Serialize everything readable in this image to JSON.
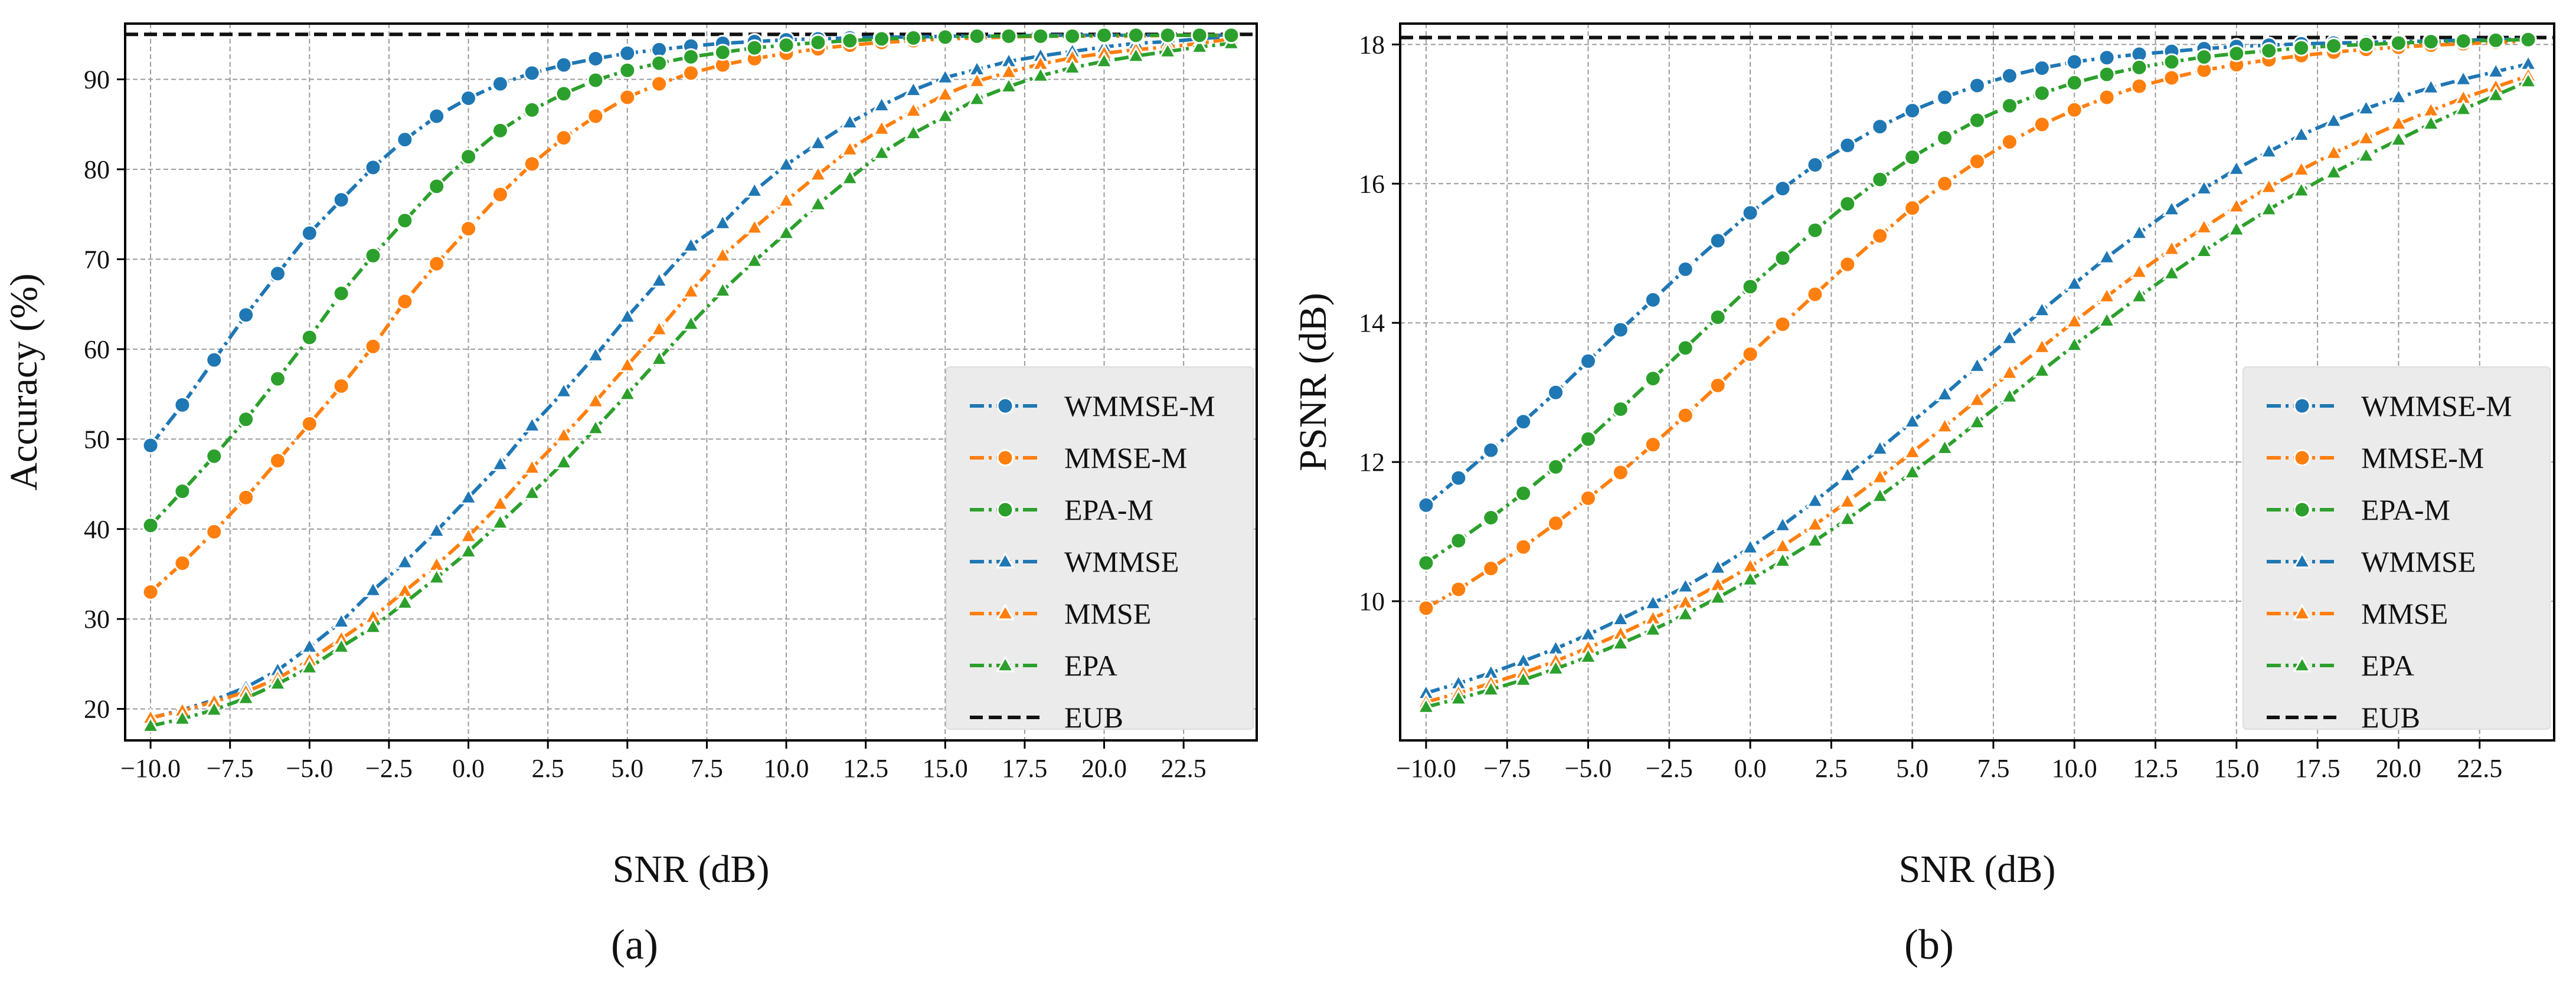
{
  "colors": {
    "blue": "#1f77b4",
    "orange": "#ff7f0e",
    "green": "#2ca02c",
    "black": "#111111",
    "grid": "#9a9a9a",
    "legend_bg": "#ebebeb"
  },
  "chart_data": [
    {
      "id": "a",
      "type": "line",
      "caption": "(a)",
      "xlabel": "SNR (dB)",
      "ylabel": "Accuracy (%)",
      "xlim": [
        -10.8,
        24.8
      ],
      "ylim": [
        16.5,
        96.2
      ],
      "xticks": [
        -10.0,
        -7.5,
        -5.0,
        -2.5,
        0.0,
        2.5,
        5.0,
        7.5,
        10.0,
        12.5,
        15.0,
        17.5,
        20.0,
        22.5
      ],
      "xtick_labels": [
        "−10.0",
        "−7.5",
        "−5.0",
        "−2.5",
        "0.0",
        "2.5",
        "5.0",
        "7.5",
        "10.0",
        "12.5",
        "15.0",
        "17.5",
        "20.0",
        "22.5"
      ],
      "yticks": [
        20,
        30,
        40,
        50,
        60,
        70,
        80,
        90
      ],
      "ytick_labels": [
        "20",
        "30",
        "40",
        "50",
        "60",
        "70",
        "80",
        "90"
      ],
      "grid": true,
      "legend_position": "lower-right",
      "x": [
        -10,
        -9,
        -8,
        -7,
        -6,
        -5,
        -4,
        -3,
        -2,
        -1,
        0,
        1,
        2,
        3,
        4,
        5,
        6,
        7,
        8,
        9,
        10,
        11,
        12,
        13,
        14,
        15,
        16,
        17,
        18,
        19,
        20,
        21,
        22,
        23,
        24
      ],
      "reference_line": {
        "name": "EUB",
        "value": 95.0
      },
      "series": [
        {
          "name": "WMMSE-M",
          "color": "blue",
          "marker": "circle",
          "values": [
            49.3,
            53.8,
            58.8,
            63.8,
            68.4,
            72.9,
            76.6,
            80.2,
            83.3,
            85.9,
            87.9,
            89.5,
            90.7,
            91.6,
            92.3,
            92.9,
            93.3,
            93.7,
            94.0,
            94.2,
            94.4,
            94.5,
            94.6,
            94.7,
            94.7,
            94.8,
            94.8,
            94.8,
            94.9,
            94.9,
            94.9,
            94.9,
            94.9,
            94.9,
            94.9
          ]
        },
        {
          "name": "MMSE-M",
          "color": "orange",
          "marker": "circle",
          "values": [
            33.0,
            36.2,
            39.7,
            43.5,
            47.6,
            51.7,
            55.9,
            60.3,
            65.3,
            69.5,
            73.4,
            77.2,
            80.6,
            83.5,
            85.9,
            88.0,
            89.5,
            90.7,
            91.6,
            92.3,
            92.9,
            93.4,
            93.8,
            94.1,
            94.3,
            94.5,
            94.6,
            94.7,
            94.8,
            94.8,
            94.8,
            94.8,
            94.9,
            94.9,
            94.9
          ]
        },
        {
          "name": "EPA-M",
          "color": "green",
          "marker": "circle",
          "values": [
            40.4,
            44.2,
            48.1,
            52.2,
            56.7,
            61.3,
            66.2,
            70.4,
            74.3,
            78.1,
            81.4,
            84.3,
            86.6,
            88.4,
            89.9,
            91.0,
            91.8,
            92.5,
            93.0,
            93.5,
            93.8,
            94.1,
            94.3,
            94.5,
            94.6,
            94.7,
            94.8,
            94.8,
            94.8,
            94.8,
            94.9,
            94.9,
            94.9,
            94.9,
            94.9
          ]
        },
        {
          "name": "WMMSE",
          "color": "blue",
          "marker": "triangle",
          "values": [
            19.0,
            19.9,
            21.0,
            22.4,
            24.3,
            26.9,
            29.7,
            33.2,
            36.3,
            39.8,
            43.5,
            47.2,
            51.5,
            55.3,
            59.3,
            63.6,
            67.6,
            71.5,
            74.0,
            77.6,
            80.5,
            82.9,
            85.2,
            87.1,
            88.8,
            90.2,
            91.1,
            92.0,
            92.6,
            93.1,
            93.6,
            94.0,
            94.2,
            94.5,
            94.8
          ]
        },
        {
          "name": "MMSE",
          "color": "orange",
          "marker": "triangle",
          "values": [
            19.0,
            19.8,
            20.8,
            21.9,
            23.4,
            25.4,
            27.8,
            30.2,
            33.1,
            36.0,
            39.2,
            42.8,
            46.8,
            50.4,
            54.2,
            58.2,
            62.2,
            66.4,
            70.4,
            73.5,
            76.5,
            79.4,
            82.2,
            84.5,
            86.5,
            88.3,
            89.8,
            90.8,
            91.7,
            92.4,
            92.9,
            93.3,
            93.6,
            94.0,
            94.5
          ]
        },
        {
          "name": "EPA",
          "color": "green",
          "marker": "triangle",
          "values": [
            18.1,
            18.9,
            19.9,
            21.2,
            22.8,
            24.6,
            26.9,
            29.1,
            31.8,
            34.6,
            37.5,
            40.7,
            44.0,
            47.4,
            51.2,
            55.0,
            58.9,
            62.8,
            66.5,
            69.8,
            72.9,
            76.1,
            79.0,
            81.8,
            84.0,
            85.9,
            87.8,
            89.2,
            90.4,
            91.3,
            92.0,
            92.6,
            93.1,
            93.6,
            94.0
          ]
        }
      ]
    },
    {
      "id": "b",
      "type": "line",
      "caption": "(b)",
      "xlabel": "SNR (dB)",
      "ylabel": "PSNR (dB)",
      "xlim": [
        -10.8,
        24.8
      ],
      "ylim": [
        8.0,
        18.3
      ],
      "xticks": [
        -10.0,
        -7.5,
        -5.0,
        -2.5,
        0.0,
        2.5,
        5.0,
        7.5,
        10.0,
        12.5,
        15.0,
        17.5,
        20.0,
        22.5
      ],
      "xtick_labels": [
        "−10.0",
        "−7.5",
        "−5.0",
        "−2.5",
        "0.0",
        "2.5",
        "5.0",
        "7.5",
        "10.0",
        "12.5",
        "15.0",
        "17.5",
        "20.0",
        "22.5"
      ],
      "yticks": [
        10,
        12,
        14,
        16,
        18
      ],
      "ytick_labels": [
        "10",
        "12",
        "14",
        "16",
        "18"
      ],
      "grid": true,
      "legend_position": "lower-right",
      "x": [
        -10,
        -9,
        -8,
        -7,
        -6,
        -5,
        -4,
        -3,
        -2,
        -1,
        0,
        1,
        2,
        3,
        4,
        5,
        6,
        7,
        8,
        9,
        10,
        11,
        12,
        13,
        14,
        15,
        16,
        17,
        18,
        19,
        20,
        21,
        22,
        23,
        24
      ],
      "reference_line": {
        "name": "EUB",
        "value": 18.1
      },
      "series": [
        {
          "name": "WMMSE-M",
          "color": "blue",
          "marker": "circle",
          "values": [
            11.38,
            11.77,
            12.17,
            12.58,
            13.0,
            13.45,
            13.9,
            14.33,
            14.77,
            15.18,
            15.58,
            15.93,
            16.27,
            16.55,
            16.82,
            17.05,
            17.24,
            17.41,
            17.55,
            17.66,
            17.75,
            17.81,
            17.86,
            17.9,
            17.94,
            17.97,
            17.99,
            18.01,
            18.02,
            18.03,
            18.04,
            18.05,
            18.06,
            18.07,
            18.08
          ]
        },
        {
          "name": "MMSE-M",
          "color": "orange",
          "marker": "circle",
          "values": [
            9.9,
            10.17,
            10.47,
            10.78,
            11.12,
            11.48,
            11.85,
            12.25,
            12.67,
            13.1,
            13.55,
            13.98,
            14.41,
            14.84,
            15.25,
            15.65,
            16.0,
            16.32,
            16.6,
            16.85,
            17.06,
            17.24,
            17.4,
            17.52,
            17.63,
            17.71,
            17.78,
            17.84,
            17.89,
            17.93,
            17.96,
            17.99,
            18.01,
            18.03,
            18.05
          ]
        },
        {
          "name": "EPA-M",
          "color": "green",
          "marker": "circle",
          "values": [
            10.55,
            10.87,
            11.2,
            11.55,
            11.93,
            12.33,
            12.76,
            13.2,
            13.64,
            14.08,
            14.52,
            14.93,
            15.33,
            15.71,
            16.06,
            16.38,
            16.66,
            16.91,
            17.12,
            17.3,
            17.45,
            17.57,
            17.67,
            17.75,
            17.82,
            17.87,
            17.91,
            17.95,
            17.98,
            18.0,
            18.02,
            18.04,
            18.05,
            18.06,
            18.07
          ]
        },
        {
          "name": "WMMSE",
          "color": "blue",
          "marker": "triangle",
          "values": [
            8.68,
            8.82,
            8.97,
            9.14,
            9.32,
            9.52,
            9.74,
            9.97,
            10.21,
            10.48,
            10.77,
            11.09,
            11.44,
            11.81,
            12.19,
            12.58,
            12.97,
            13.38,
            13.78,
            14.18,
            14.56,
            14.94,
            15.29,
            15.63,
            15.93,
            16.21,
            16.46,
            16.7,
            16.9,
            17.08,
            17.24,
            17.38,
            17.5,
            17.61,
            17.72
          ]
        },
        {
          "name": "MMSE",
          "color": "orange",
          "marker": "triangle",
          "values": [
            8.55,
            8.68,
            8.82,
            8.97,
            9.14,
            9.33,
            9.53,
            9.75,
            9.98,
            10.23,
            10.5,
            10.79,
            11.1,
            11.43,
            11.78,
            12.14,
            12.51,
            12.89,
            13.28,
            13.65,
            14.02,
            14.38,
            14.73,
            15.06,
            15.37,
            15.67,
            15.95,
            16.2,
            16.44,
            16.65,
            16.86,
            17.05,
            17.23,
            17.39,
            17.55
          ]
        },
        {
          "name": "EPA",
          "color": "green",
          "marker": "triangle",
          "values": [
            8.48,
            8.6,
            8.73,
            8.87,
            9.03,
            9.2,
            9.39,
            9.59,
            9.81,
            10.05,
            10.31,
            10.58,
            10.87,
            11.18,
            11.51,
            11.85,
            12.2,
            12.57,
            12.94,
            13.31,
            13.68,
            14.03,
            14.38,
            14.71,
            15.03,
            15.34,
            15.63,
            15.9,
            16.16,
            16.4,
            16.63,
            16.86,
            17.07,
            17.27,
            17.47
          ]
        }
      ]
    }
  ]
}
